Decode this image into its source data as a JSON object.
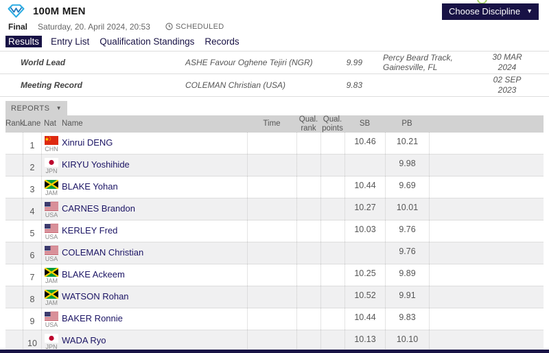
{
  "header": {
    "title": "100M MEN",
    "round": "Final",
    "datetime": "Saturday, 20. April 2024, 20:53",
    "status": "SCHEDULED",
    "choose_discipline_label": "Choose Discipline"
  },
  "tabs": [
    {
      "label": "Results",
      "active": true
    },
    {
      "label": "Entry List",
      "active": false
    },
    {
      "label": "Qualification Standings",
      "active": false
    },
    {
      "label": "Records",
      "active": false
    }
  ],
  "records": [
    {
      "label": "World Lead",
      "athlete": "ASHE Favour Oghene Tejiri (NGR)",
      "mark": "9.99",
      "venue": "Percy Beard Track,\nGainesville, FL",
      "date": "30 MAR 2024"
    },
    {
      "label": "Meeting Record",
      "athlete": "COLEMAN Christian (USA)",
      "mark": "9.83",
      "venue": "",
      "date": "02 SEP 2023"
    }
  ],
  "reports_button": {
    "label": "REPORTS"
  },
  "results_table": {
    "columns": [
      "Rank",
      "Lane",
      "Nat",
      "Name",
      "Time",
      "Qual. rank",
      "Qual. points",
      "SB",
      "PB"
    ],
    "rows": [
      {
        "rank": "",
        "lane": "1",
        "nat": "CHN",
        "name": "Xinrui DENG",
        "time": "",
        "qual_rank": "",
        "qual_points": "",
        "sb": "10.46",
        "pb": "10.21"
      },
      {
        "rank": "",
        "lane": "2",
        "nat": "JPN",
        "name": "KIRYU Yoshihide",
        "time": "",
        "qual_rank": "",
        "qual_points": "",
        "sb": "",
        "pb": "9.98"
      },
      {
        "rank": "",
        "lane": "3",
        "nat": "JAM",
        "name": "BLAKE Yohan",
        "time": "",
        "qual_rank": "",
        "qual_points": "",
        "sb": "10.44",
        "pb": "9.69"
      },
      {
        "rank": "",
        "lane": "4",
        "nat": "USA",
        "name": "CARNES Brandon",
        "time": "",
        "qual_rank": "",
        "qual_points": "",
        "sb": "10.27",
        "pb": "10.01"
      },
      {
        "rank": "",
        "lane": "5",
        "nat": "USA",
        "name": "KERLEY Fred",
        "time": "",
        "qual_rank": "",
        "qual_points": "",
        "sb": "10.03",
        "pb": "9.76"
      },
      {
        "rank": "",
        "lane": "6",
        "nat": "USA",
        "name": "COLEMAN Christian",
        "time": "",
        "qual_rank": "",
        "qual_points": "",
        "sb": "",
        "pb": "9.76"
      },
      {
        "rank": "",
        "lane": "7",
        "nat": "JAM",
        "name": "BLAKE Ackeem",
        "time": "",
        "qual_rank": "",
        "qual_points": "",
        "sb": "10.25",
        "pb": "9.89"
      },
      {
        "rank": "",
        "lane": "8",
        "nat": "JAM",
        "name": "WATSON Rohan",
        "time": "",
        "qual_rank": "",
        "qual_points": "",
        "sb": "10.52",
        "pb": "9.91"
      },
      {
        "rank": "",
        "lane": "9",
        "nat": "USA",
        "name": "BAKER Ronnie",
        "time": "",
        "qual_rank": "",
        "qual_points": "",
        "sb": "10.44",
        "pb": "9.83"
      },
      {
        "rank": "",
        "lane": "10",
        "nat": "JPN",
        "name": "WADA Ryo",
        "time": "",
        "qual_rank": "",
        "qual_points": "",
        "sb": "10.13",
        "pb": "10.10"
      }
    ]
  },
  "colors": {
    "navy": "#181245",
    "link_navy": "#1b1464",
    "header_gray": "#d2d2d2",
    "row_alt_gray": "#f0f0f1",
    "logo_cyan": "#29abe2",
    "logo_blue": "#1b75bb",
    "arc_green": "#8dc63f"
  }
}
